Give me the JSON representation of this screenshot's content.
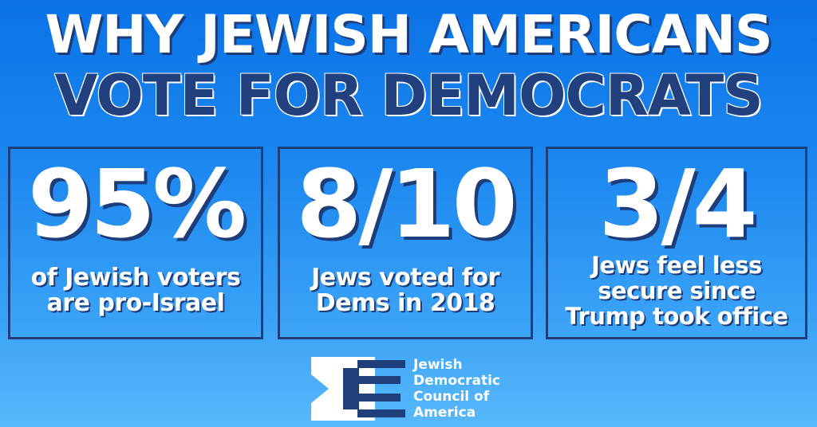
{
  "title": {
    "line1": "WHY JEWISH AMERICANS",
    "line2": "VOTE FOR DEMOCRATS"
  },
  "stats": [
    {
      "value": "95%",
      "lines": [
        "of Jewish voters",
        "are pro-Israel"
      ]
    },
    {
      "value": "8/10",
      "lines": [
        "Jews voted for",
        "Dems in 2018"
      ]
    },
    {
      "value": "3/4",
      "lines": [
        "Jews feel less",
        "secure since",
        "Trump took office"
      ]
    }
  ],
  "logo": {
    "icon": "jdca-logo-icon",
    "lines": [
      "Jewish",
      "Democratic",
      "Council of",
      "America"
    ]
  },
  "colors": {
    "background_top": "#0a72e6",
    "background_bottom": "#58b8fb",
    "navy": "#23407e",
    "white": "#ffffff"
  }
}
